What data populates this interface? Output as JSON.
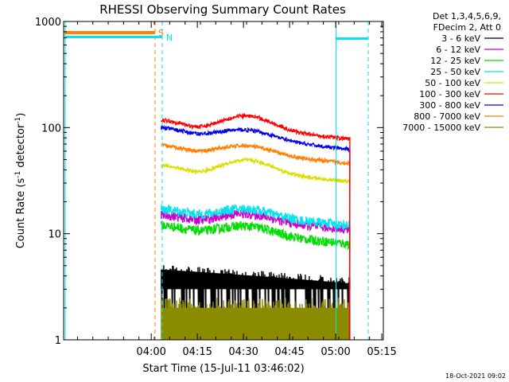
{
  "chart_data": {
    "type": "line",
    "title": "RHESSI Observing Summary Count Rates",
    "xlabel": "Start Time (15-Jul-11 03:46:02)",
    "ylabel_main": "Count Rate (s",
    "ylabel_sup1": "-1",
    "ylabel_mid": " detector",
    "ylabel_sup2": "-1",
    "ylabel_end": ")",
    "y_scale": "log",
    "ylim": [
      1,
      1000
    ],
    "y_ticks": [
      {
        "value": 1,
        "label": "1"
      },
      {
        "value": 10,
        "label": "10"
      },
      {
        "value": 100,
        "label": "100"
      },
      {
        "value": 1000,
        "label": "1000"
      }
    ],
    "x_minutes_range": [
      -14.5,
      89.5
    ],
    "x_ticks": [
      {
        "min": 14,
        "label": "04:00"
      },
      {
        "min": 29,
        "label": "04:15"
      },
      {
        "min": 44,
        "label": "04:30"
      },
      {
        "min": 59,
        "label": "04:45"
      },
      {
        "min": 74,
        "label": "05:00"
      },
      {
        "min": 89,
        "label": "05:15"
      }
    ],
    "legend_header": [
      "Det 1,3,4,5,6,9,",
      "FDecim 2, Att 0"
    ],
    "legend_position": "top-right, outside plot",
    "data_start_min": 17.3,
    "data_end_min": 78.5,
    "series": [
      {
        "name": "3 - 6 keV",
        "color": "#000000",
        "values_start_end": [
          4.2,
          3.2
        ]
      },
      {
        "name": "6 - 12 keV",
        "color": "#cc00cc",
        "values_start_end": [
          15,
          11
        ]
      },
      {
        "name": "12 - 25 keV",
        "color": "#00dd00",
        "values_start_end": [
          12,
          8
        ]
      },
      {
        "name": "25 - 50 keV",
        "color": "#00e5ee",
        "values_start_end": [
          17,
          12
        ]
      },
      {
        "name": "50 - 100 keV",
        "color": "#dddd00",
        "values_start_end": [
          44,
          31
        ]
      },
      {
        "name": "100 - 300 keV",
        "color": "#ff0000",
        "values_start_end": [
          118,
          78
        ]
      },
      {
        "name": "300 - 800 keV",
        "color": "#0000ee",
        "values_start_end": [
          100,
          62
        ]
      },
      {
        "name": "800 - 7000 keV",
        "color": "#ff7f00",
        "values_start_end": [
          68,
          46
        ]
      },
      {
        "name": "7000 - 15000 keV",
        "color": "#8b8b00",
        "values_start_end": [
          1.6,
          1.4
        ]
      }
    ],
    "annotations": [
      {
        "label": "S",
        "color": "#ff7f00"
      },
      {
        "label": "N",
        "color": "#00e5ee"
      }
    ],
    "footer_timestamp": "18-Oct-2021 09:02"
  }
}
